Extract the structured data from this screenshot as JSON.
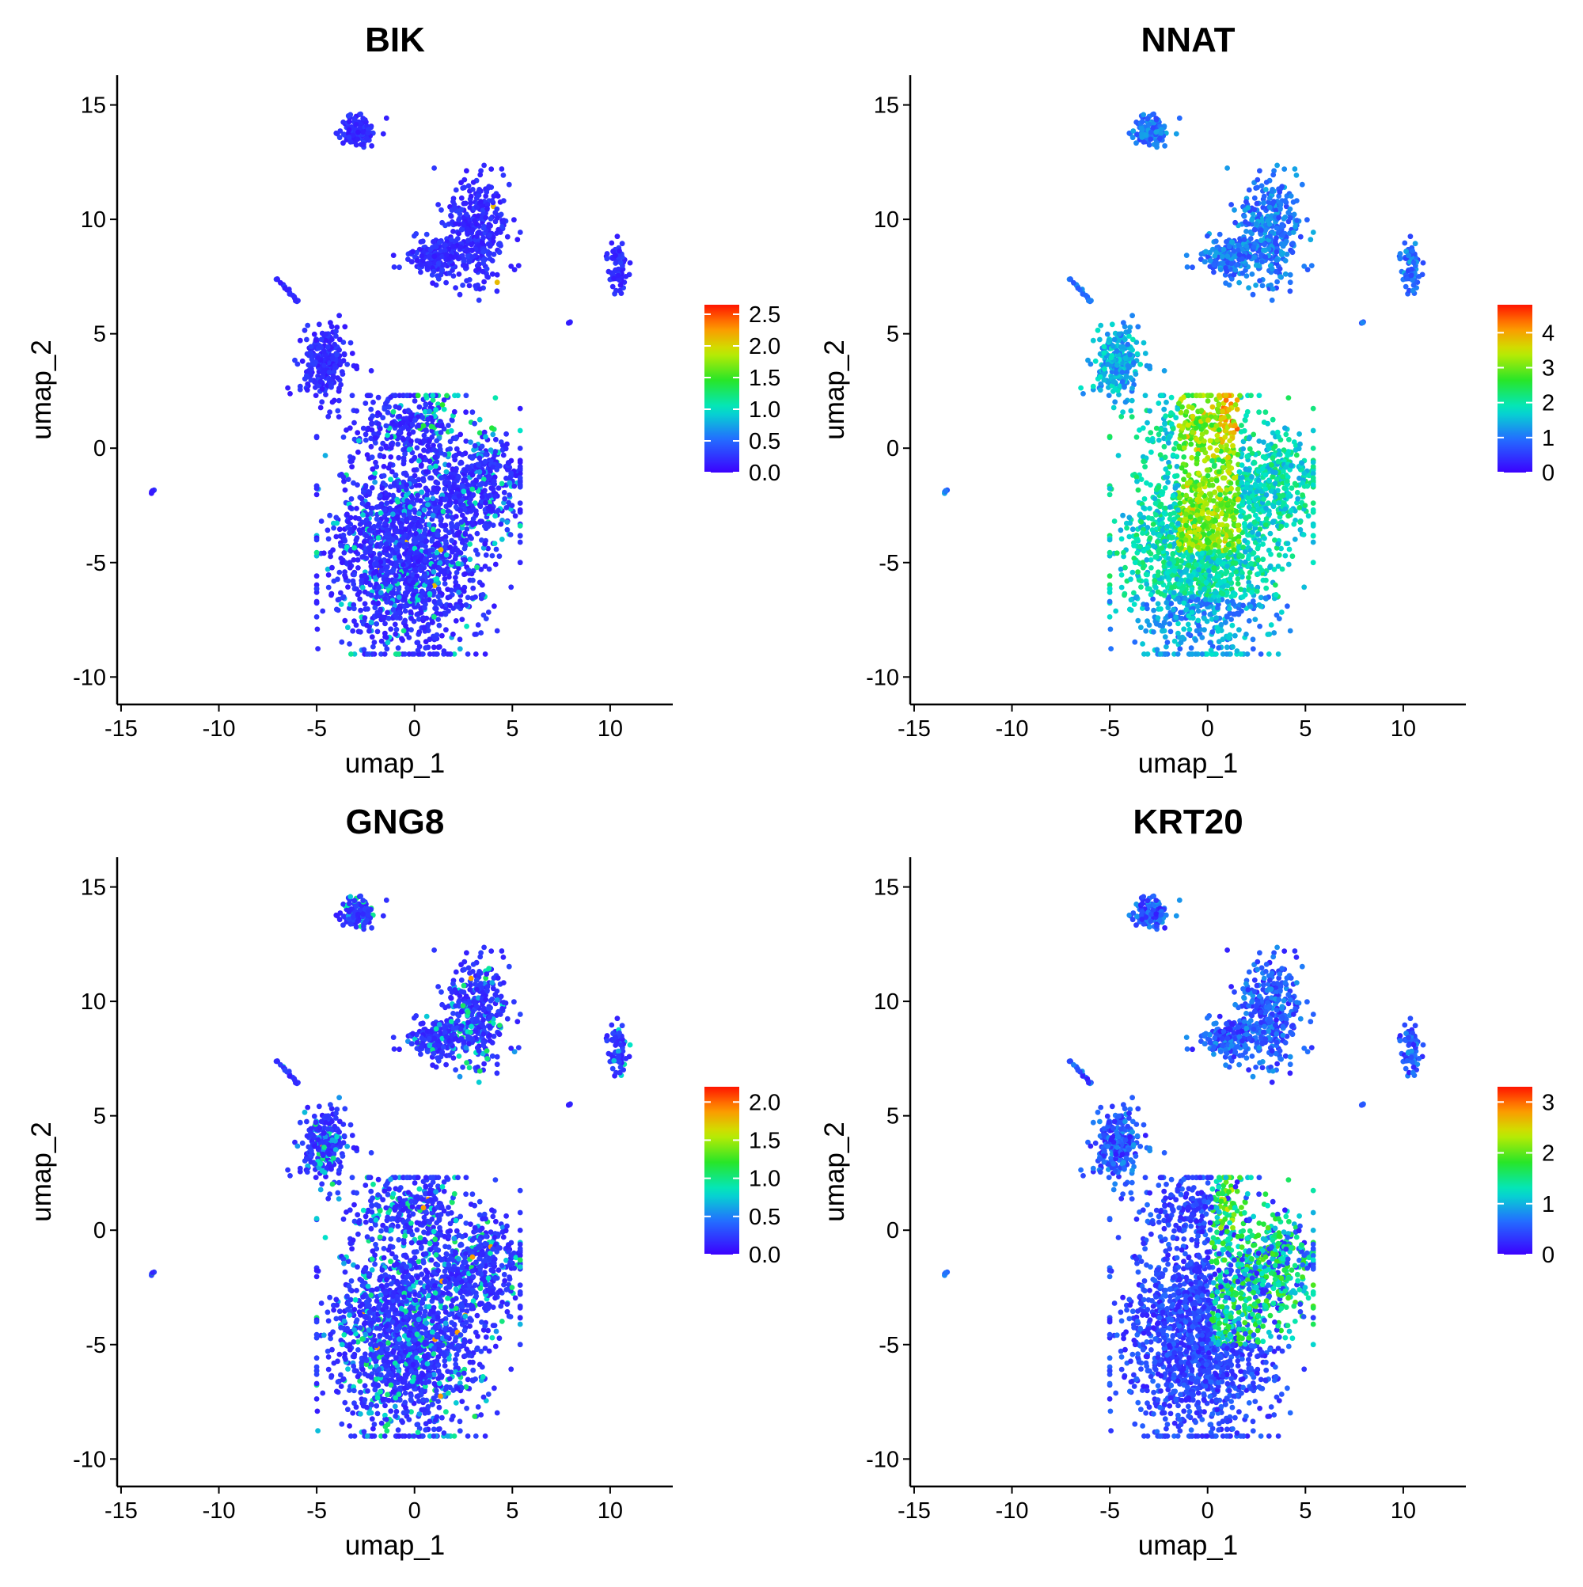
{
  "figure": {
    "xlabel": "umap_1",
    "ylabel": "umap_2"
  },
  "chart_data": [
    {
      "type": "scatter",
      "title": "BIK",
      "xlabel": "umap_1",
      "ylabel": "umap_2",
      "xlim": [
        -15.2,
        13.2
      ],
      "ylim": [
        -11.2,
        16.3
      ],
      "xticks": [
        -15,
        -10,
        -5,
        0,
        5,
        10
      ],
      "yticks": [
        -10,
        -5,
        0,
        5,
        10,
        15
      ],
      "colorscale": "rainbow (blue to red)",
      "colorbar": {
        "min": 0,
        "max": 2.65,
        "ticks": [
          0.0,
          0.5,
          1.0,
          1.5,
          2.0,
          2.5
        ],
        "labels": [
          "0.0",
          "0.5",
          "1.0",
          "1.5",
          "2.0",
          "2.5"
        ]
      },
      "expression_pattern": "mostly low (blue); sparse low-moderate expression across main cluster, moderate near top center of main cluster",
      "clusters": [
        {
          "center": [
            -0.5,
            -3.5
          ],
          "mean_expression": 0.3
        },
        {
          "center": [
            -4.6,
            3.7
          ],
          "mean_expression": 0.2
        },
        {
          "center": [
            2.8,
            9.3
          ],
          "mean_expression": 0.25
        },
        {
          "center": [
            -2.7,
            13.8
          ],
          "mean_expression": 0.1
        },
        {
          "center": [
            10.4,
            7.9
          ],
          "mean_expression": 0.1
        },
        {
          "center": [
            -6.9,
            7.2
          ],
          "mean_expression": 0.1
        },
        {
          "center": [
            -13.4,
            -1.9
          ],
          "mean_expression": 0.0
        },
        {
          "center": [
            7.9,
            5.5
          ],
          "mean_expression": 0.0
        }
      ]
    },
    {
      "type": "scatter",
      "title": "NNAT",
      "xlabel": "umap_1",
      "ylabel": "umap_2",
      "xlim": [
        -15.2,
        13.2
      ],
      "ylim": [
        -11.2,
        16.3
      ],
      "xticks": [
        -15,
        -10,
        -5,
        0,
        5,
        10
      ],
      "yticks": [
        -10,
        -5,
        0,
        5,
        10,
        15
      ],
      "colorscale": "rainbow (blue to red)",
      "colorbar": {
        "min": 0,
        "max": 4.8,
        "ticks": [
          0,
          1,
          2,
          3,
          4
        ],
        "labels": [
          "0",
          "1",
          "2",
          "3",
          "4"
        ]
      },
      "expression_pattern": "moderate-high in main cluster, highest (orange/red) in upper center column of main cluster; moderate in other clusters",
      "clusters": [
        {
          "center": [
            -0.5,
            -3.5
          ],
          "mean_expression": 2.2
        },
        {
          "center": [
            -4.6,
            3.7
          ],
          "mean_expression": 1.3
        },
        {
          "center": [
            2.8,
            9.3
          ],
          "mean_expression": 1.0
        },
        {
          "center": [
            -2.7,
            13.8
          ],
          "mean_expression": 0.9
        },
        {
          "center": [
            10.4,
            7.9
          ],
          "mean_expression": 0.5
        },
        {
          "center": [
            -6.9,
            7.2
          ],
          "mean_expression": 0.8
        },
        {
          "center": [
            -13.4,
            -1.9
          ],
          "mean_expression": 0.8
        },
        {
          "center": [
            7.9,
            5.5
          ],
          "mean_expression": 0.5
        }
      ]
    },
    {
      "type": "scatter",
      "title": "GNG8",
      "xlabel": "umap_1",
      "ylabel": "umap_2",
      "xlim": [
        -15.2,
        13.2
      ],
      "ylim": [
        -11.2,
        16.3
      ],
      "xticks": [
        -15,
        -10,
        -5,
        0,
        5,
        10
      ],
      "yticks": [
        -10,
        -5,
        0,
        5,
        10,
        15
      ],
      "colorscale": "rainbow (blue to red)",
      "colorbar": {
        "min": 0,
        "max": 2.2,
        "ticks": [
          0.0,
          0.5,
          1.0,
          1.5,
          2.0
        ],
        "labels": [
          "0.0",
          "0.5",
          "1.0",
          "1.5",
          "2.0"
        ]
      },
      "expression_pattern": "mostly low; scattered low-moderate cells throughout main cluster and small clusters",
      "clusters": [
        {
          "center": [
            -0.5,
            -3.5
          ],
          "mean_expression": 0.35
        },
        {
          "center": [
            -4.6,
            3.7
          ],
          "mean_expression": 0.35
        },
        {
          "center": [
            2.8,
            9.3
          ],
          "mean_expression": 0.25
        },
        {
          "center": [
            -2.7,
            13.8
          ],
          "mean_expression": 0.2
        },
        {
          "center": [
            10.4,
            7.9
          ],
          "mean_expression": 0.1
        },
        {
          "center": [
            -6.9,
            7.2
          ],
          "mean_expression": 0.15
        },
        {
          "center": [
            -13.4,
            -1.9
          ],
          "mean_expression": 0.0
        },
        {
          "center": [
            7.9,
            5.5
          ],
          "mean_expression": 0.0
        }
      ]
    },
    {
      "type": "scatter",
      "title": "KRT20",
      "xlabel": "umap_1",
      "ylabel": "umap_2",
      "xlim": [
        -15.2,
        13.2
      ],
      "ylim": [
        -11.2,
        16.3
      ],
      "xticks": [
        -15,
        -10,
        -5,
        0,
        5,
        10
      ],
      "yticks": [
        -10,
        -5,
        0,
        5,
        10,
        15
      ],
      "colorscale": "rainbow (blue to red)",
      "colorbar": {
        "min": 0,
        "max": 3.3,
        "ticks": [
          0,
          1,
          2,
          3
        ],
        "labels": [
          "0",
          "1",
          "2",
          "3"
        ]
      },
      "expression_pattern": "low in lower main cluster, moderate-high (green/yellow) in upper right region of main cluster",
      "clusters": [
        {
          "center": [
            -0.5,
            -3.5
          ],
          "mean_expression": 0.7
        },
        {
          "center": [
            -4.6,
            3.7
          ],
          "mean_expression": 0.5
        },
        {
          "center": [
            2.8,
            9.3
          ],
          "mean_expression": 0.3
        },
        {
          "center": [
            -2.7,
            13.8
          ],
          "mean_expression": 0.3
        },
        {
          "center": [
            10.4,
            7.9
          ],
          "mean_expression": 0.3
        },
        {
          "center": [
            -6.9,
            7.2
          ],
          "mean_expression": 0.4
        },
        {
          "center": [
            -13.4,
            -1.9
          ],
          "mean_expression": 0.4
        },
        {
          "center": [
            7.9,
            5.5
          ],
          "mean_expression": 0.2
        }
      ]
    }
  ]
}
